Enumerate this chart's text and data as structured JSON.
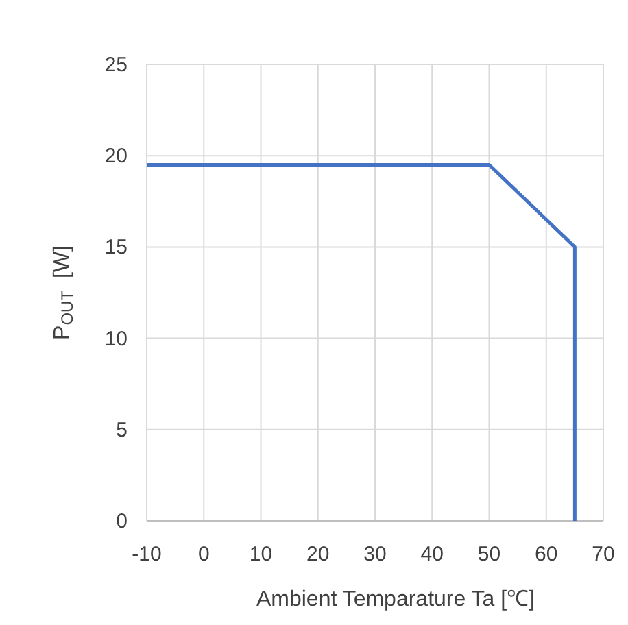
{
  "chart_data": {
    "type": "line",
    "xlabel": "Ambient Temparature Ta [℃]",
    "ylabel": "P$_{OUT}$  [W]",
    "x": [
      -10,
      50,
      65,
      65
    ],
    "series": [
      {
        "color": "#4472c4",
        "values": [
          19.5,
          19.5,
          15,
          0
        ]
      }
    ],
    "xlim": [
      -10,
      70
    ],
    "xticks": [
      -10,
      0,
      10,
      20,
      30,
      40,
      50,
      60,
      70
    ],
    "ylim": [
      0,
      25
    ],
    "yticks": [
      0,
      5,
      10,
      15,
      20,
      25
    ],
    "grid": true,
    "marker": "none",
    "line_style": "solid"
  }
}
